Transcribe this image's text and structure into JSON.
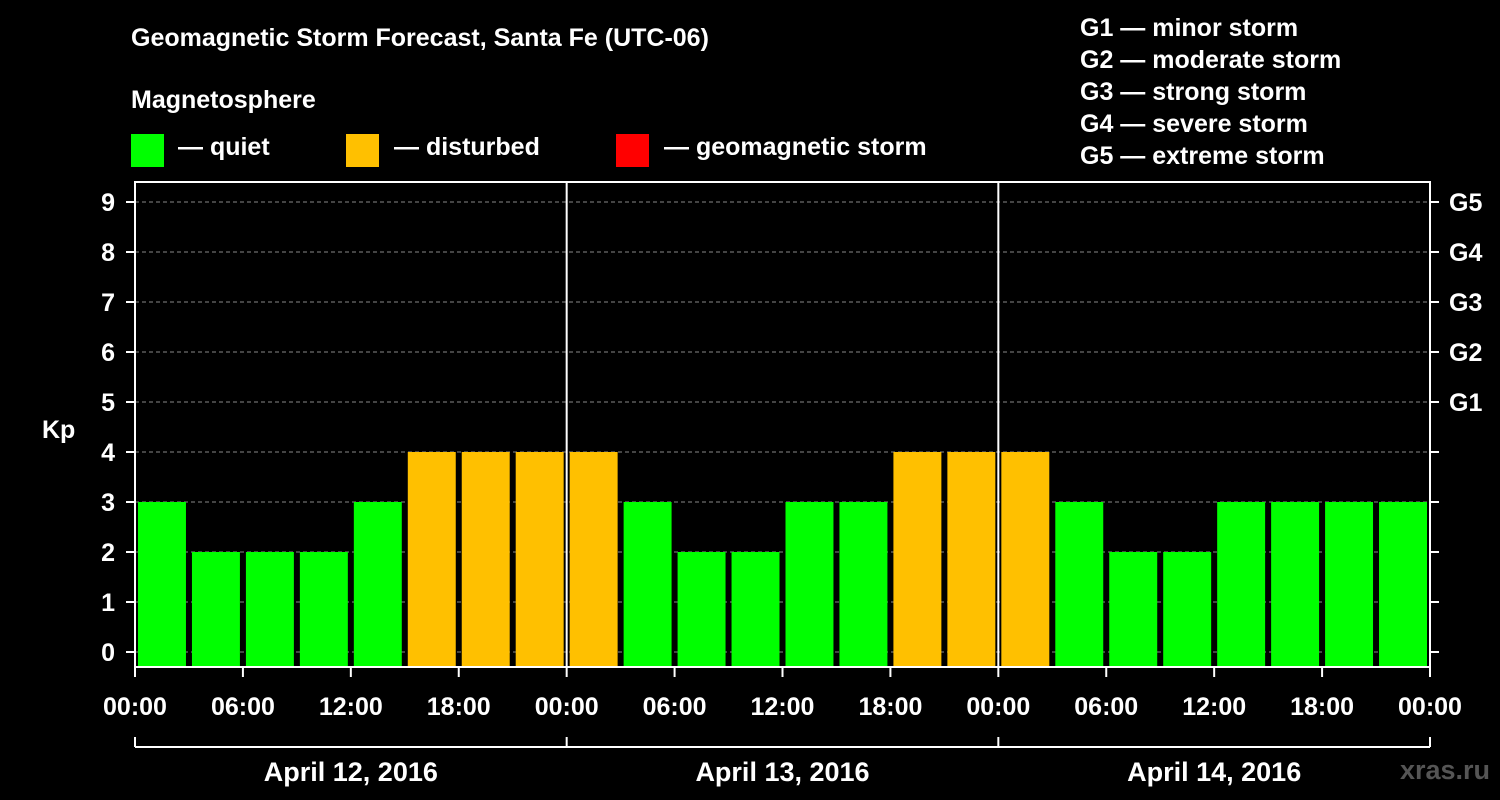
{
  "title": "Geomagnetic Storm Forecast, Santa Fe (UTC-06)",
  "magnetosphere_label": "Magnetosphere",
  "legend": [
    {
      "color": "#00ff00",
      "text": "— quiet"
    },
    {
      "color": "#ffc000",
      "text": "— disturbed"
    },
    {
      "color": "#ff0000",
      "text": "— geomagnetic storm"
    }
  ],
  "g_scale": [
    "G1 — minor storm",
    "G2 — moderate storm",
    "G3 — strong storm",
    "G4 — severe storm",
    "G5 — extreme storm"
  ],
  "watermark": "xras.ru",
  "chart_data": {
    "type": "bar",
    "ylabel": "Kp",
    "ylim": [
      0,
      9
    ],
    "yticks": [
      "0",
      "1",
      "2",
      "3",
      "4",
      "5",
      "6",
      "7",
      "8",
      "9"
    ],
    "right_ticks": [
      {
        "kp": 5,
        "label": "G1"
      },
      {
        "kp": 6,
        "label": "G2"
      },
      {
        "kp": 7,
        "label": "G3"
      },
      {
        "kp": 8,
        "label": "G4"
      },
      {
        "kp": 9,
        "label": "G5"
      }
    ],
    "grid": "horizontal dashed",
    "xtick_labels": [
      "00:00",
      "06:00",
      "12:00",
      "18:00",
      "00:00",
      "06:00",
      "12:00",
      "18:00",
      "00:00",
      "06:00",
      "12:00",
      "18:00",
      "00:00"
    ],
    "days": [
      "April 12, 2016",
      "April 13, 2016",
      "April 14, 2016"
    ],
    "values": [
      3,
      2,
      2,
      2,
      3,
      4,
      4,
      4,
      4,
      3,
      2,
      2,
      3,
      3,
      4,
      4,
      4,
      3,
      2,
      2,
      3,
      3,
      3,
      3
    ],
    "colors": [
      "#00ff00",
      "#00ff00",
      "#00ff00",
      "#00ff00",
      "#00ff00",
      "#ffc000",
      "#ffc000",
      "#ffc000",
      "#ffc000",
      "#00ff00",
      "#00ff00",
      "#00ff00",
      "#00ff00",
      "#00ff00",
      "#ffc000",
      "#ffc000",
      "#ffc000",
      "#00ff00",
      "#00ff00",
      "#00ff00",
      "#00ff00",
      "#00ff00",
      "#00ff00",
      "#00ff00"
    ]
  }
}
